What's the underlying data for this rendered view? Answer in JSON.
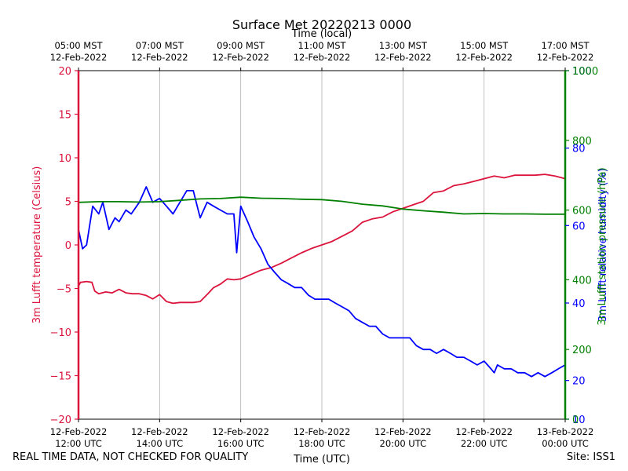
{
  "chart_data": {
    "type": "line",
    "title": "Surface Met 20220213 0000",
    "xlabel": "Time (UTC)",
    "x2label": "Time (local)",
    "x_bottom_ticks": [
      [
        "12-Feb-2022",
        "12:00 UTC"
      ],
      [
        "12-Feb-2022",
        "14:00 UTC"
      ],
      [
        "12-Feb-2022",
        "16:00 UTC"
      ],
      [
        "12-Feb-2022",
        "18:00 UTC"
      ],
      [
        "12-Feb-2022",
        "20:00 UTC"
      ],
      [
        "12-Feb-2022",
        "22:00 UTC"
      ],
      [
        "13-Feb-2022",
        "00:00 UTC"
      ]
    ],
    "x_top_ticks": [
      [
        "05:00 MST",
        "12-Feb-2022"
      ],
      [
        "07:00 MST",
        "12-Feb-2022"
      ],
      [
        "09:00 MST",
        "12-Feb-2022"
      ],
      [
        "11:00 MST",
        "12-Feb-2022"
      ],
      [
        "13:00 MST",
        "12-Feb-2022"
      ],
      [
        "15:00 MST",
        "12-Feb-2022"
      ],
      [
        "17:00 MST",
        "12-Feb-2022"
      ]
    ],
    "xlim_utc_hours": [
      12,
      24
    ],
    "grid": "x",
    "y_left": {
      "label": "3m Lufft temperature (Celsius)",
      "ylim": [
        -20,
        20
      ],
      "ticks": [
        -20,
        -15,
        -10,
        -5,
        0,
        5,
        10,
        15,
        20
      ],
      "color": "#dc143c"
    },
    "y_right_axes": [
      {
        "label": "3m Lufft relative humidity (%)",
        "ylim": [
          10,
          100
        ],
        "ticks": [
          10,
          20,
          40,
          60,
          80,
          100
        ],
        "color": "#0000ff"
      },
      {
        "label": "3m Lufft station pressure (hPa)",
        "ylim": [
          0,
          1000
        ],
        "ticks": [
          0,
          200,
          400,
          600,
          800,
          1000
        ],
        "color": "#008000"
      }
    ],
    "series": [
      {
        "name": "3m Lufft temperature (Celsius)",
        "color": "#dc143c",
        "axis": "left",
        "x": [
          12.0,
          12.05,
          12.2,
          12.33,
          12.4,
          12.5,
          12.67,
          12.83,
          13.0,
          13.17,
          13.33,
          13.5,
          13.67,
          13.83,
          14.0,
          14.17,
          14.33,
          14.5,
          14.67,
          14.83,
          15.0,
          15.17,
          15.33,
          15.5,
          15.67,
          15.83,
          16.0,
          16.25,
          16.5,
          16.75,
          17.0,
          17.25,
          17.5,
          17.75,
          18.0,
          18.25,
          18.5,
          18.75,
          19.0,
          19.25,
          19.5,
          19.75,
          20.0,
          20.25,
          20.5,
          20.75,
          21.0,
          21.25,
          21.5,
          21.75,
          22.0,
          22.25,
          22.5,
          22.75,
          23.0,
          23.25,
          23.5,
          23.75,
          24.0
        ],
        "y": [
          -4.7,
          -4.3,
          -4.2,
          -4.3,
          -5.3,
          -5.6,
          -5.4,
          -5.5,
          -5.1,
          -5.5,
          -5.6,
          -5.6,
          -5.8,
          -6.2,
          -5.7,
          -6.5,
          -6.7,
          -6.6,
          -6.6,
          -6.6,
          -6.5,
          -5.7,
          -4.9,
          -4.5,
          -3.9,
          -4.0,
          -3.9,
          -3.4,
          -2.9,
          -2.6,
          -2.1,
          -1.5,
          -0.9,
          -0.4,
          0.0,
          0.4,
          1.0,
          1.6,
          2.6,
          3.0,
          3.2,
          3.8,
          4.2,
          4.6,
          5.0,
          6.0,
          6.2,
          6.8,
          7.0,
          7.3,
          7.6,
          7.9,
          7.7,
          8.0,
          8.0,
          8.0,
          8.1,
          7.9,
          7.6
        ]
      },
      {
        "name": "3m Lufft relative humidity (%)",
        "color": "#0000ff",
        "axis": "right1",
        "x": [
          12.0,
          12.1,
          12.2,
          12.35,
          12.5,
          12.6,
          12.75,
          12.9,
          13.0,
          13.17,
          13.3,
          13.5,
          13.67,
          13.83,
          14.0,
          14.17,
          14.33,
          14.5,
          14.67,
          14.83,
          15.0,
          15.17,
          15.33,
          15.5,
          15.67,
          15.83,
          15.9,
          16.0,
          16.17,
          16.33,
          16.5,
          16.67,
          16.83,
          17.0,
          17.17,
          17.33,
          17.5,
          17.67,
          17.83,
          18.0,
          18.17,
          18.33,
          18.5,
          18.67,
          18.83,
          19.0,
          19.17,
          19.33,
          19.5,
          19.67,
          19.83,
          20.0,
          20.17,
          20.33,
          20.5,
          20.67,
          20.83,
          21.0,
          21.17,
          21.33,
          21.5,
          21.67,
          21.83,
          22.0,
          22.17,
          22.25,
          22.33,
          22.5,
          22.67,
          22.83,
          23.0,
          23.17,
          23.33,
          23.5,
          23.67,
          23.83,
          24.0
        ],
        "y": [
          59,
          54,
          55,
          65,
          63,
          66,
          59,
          62,
          61,
          64,
          63,
          66,
          70,
          66,
          67,
          65,
          63,
          66,
          69,
          69,
          62,
          66,
          65,
          64,
          63,
          63,
          53,
          65,
          61,
          57,
          54,
          50,
          48,
          46,
          45,
          44,
          44,
          42,
          41,
          41,
          41,
          40,
          39,
          38,
          36,
          35,
          34,
          34,
          32,
          31,
          31,
          31,
          31,
          29,
          28,
          28,
          27,
          28,
          27,
          26,
          26,
          25,
          24,
          25,
          23,
          22,
          24,
          23,
          23,
          22,
          22,
          21,
          22,
          21,
          22,
          23,
          24
        ]
      },
      {
        "name": "3m Lufft station pressure (hPa)",
        "color": "#008000",
        "axis": "right2",
        "x": [
          12.0,
          12.5,
          13.0,
          13.5,
          14.0,
          14.5,
          15.0,
          15.5,
          16.0,
          16.5,
          17.0,
          17.5,
          18.0,
          18.5,
          19.0,
          19.5,
          20.0,
          20.5,
          21.0,
          21.5,
          22.0,
          22.5,
          23.0,
          23.5,
          24.0
        ],
        "y": [
          622,
          624,
          624,
          623,
          624,
          628,
          632,
          633,
          637,
          634,
          633,
          631,
          630,
          625,
          617,
          612,
          603,
          598,
          594,
          589,
          590,
          589,
          589,
          588,
          588
        ]
      }
    ]
  },
  "footer": {
    "left": "REAL TIME DATA, NOT CHECKED FOR QUALITY",
    "right": "Site: ISS1"
  }
}
